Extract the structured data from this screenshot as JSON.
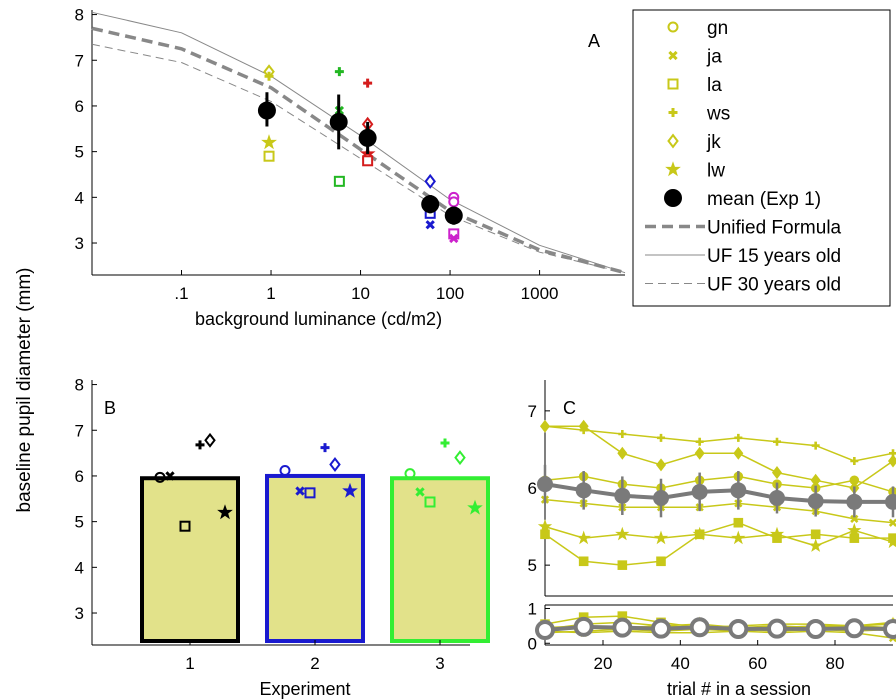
{
  "figure": {
    "shared_ylabel": "baseline pupil diameter (mm)"
  },
  "colors": {
    "olive": "#c8c819",
    "olive_fill": "#e2e28a",
    "green": "#22b722",
    "green3": "#33ee33",
    "red": "#d41c1c",
    "blue": "#1a1acf",
    "magenta": "#cc22cc",
    "gray": "#777777",
    "black": "#000000"
  },
  "chart_data": [
    {
      "panel": "A",
      "type": "scatter",
      "xscale": "log",
      "xlabel": "background luminance (cd/m2)",
      "xticks": [
        0.1,
        1,
        10,
        100,
        1000
      ],
      "xtick_labels": [
        ".1",
        "1",
        "10",
        "100",
        "1000"
      ],
      "xlim": [
        0.01,
        9000
      ],
      "ylim": [
        2.3,
        8.1
      ],
      "yticks": [
        3,
        4,
        5,
        6,
        7,
        8
      ],
      "legend_position": "outside-right",
      "legend": [
        {
          "label": "gn",
          "marker": "circle",
          "color": "#c8c819"
        },
        {
          "label": "ja",
          "marker": "x",
          "color": "#c8c819"
        },
        {
          "label": "la",
          "marker": "square",
          "color": "#c8c819"
        },
        {
          "label": "ws",
          "marker": "plus",
          "color": "#c8c819"
        },
        {
          "label": "jk",
          "marker": "diamond",
          "color": "#c8c819"
        },
        {
          "label": "lw",
          "marker": "star",
          "color": "#c8c819"
        },
        {
          "label": "mean (Exp 1)",
          "marker": "dot",
          "color": "#000000"
        },
        {
          "label": "Unified Formula",
          "marker": "dashed-thick",
          "color": "#888888"
        },
        {
          "label": "UF 15 years old",
          "marker": "line-thin",
          "color": "#888888"
        },
        {
          "label": "UF 30 years old",
          "marker": "dashed-thin",
          "color": "#888888"
        }
      ],
      "observers": [
        {
          "x": 0.95,
          "color": "#c8c819",
          "points": [
            {
              "m": "diamond",
              "y": 6.75
            },
            {
              "m": "plus",
              "y": 6.65
            },
            {
              "m": "star",
              "y": 5.2
            },
            {
              "m": "square",
              "y": 4.9
            }
          ]
        },
        {
          "x": 5.8,
          "color": "#22b722",
          "points": [
            {
              "m": "plus",
              "y": 6.75
            },
            {
              "m": "x",
              "y": 5.9
            },
            {
              "m": "square",
              "y": 4.35
            }
          ]
        },
        {
          "x": 12,
          "color": "#d41c1c",
          "points": [
            {
              "m": "plus",
              "y": 6.5
            },
            {
              "m": "diamond",
              "y": 5.6
            },
            {
              "m": "star",
              "y": 4.95
            },
            {
              "m": "circle",
              "y": 4.85
            },
            {
              "m": "square",
              "y": 4.8
            }
          ]
        },
        {
          "x": 60,
          "color": "#1a1acf",
          "points": [
            {
              "m": "diamond",
              "y": 4.35
            },
            {
              "m": "plus",
              "y": 3.9
            },
            {
              "m": "square",
              "y": 3.65
            },
            {
              "m": "x",
              "y": 3.4
            }
          ]
        },
        {
          "x": 110,
          "color": "#cc22cc",
          "points": [
            {
              "m": "circle",
              "y": 4.0
            },
            {
              "m": "circle",
              "y": 3.9
            },
            {
              "m": "square",
              "y": 3.2
            },
            {
              "m": "x",
              "y": 3.1
            }
          ]
        }
      ],
      "means": [
        {
          "x": 0.9,
          "y": 5.9,
          "lo": 5.55,
          "hi": 6.3
        },
        {
          "x": 5.7,
          "y": 5.65,
          "lo": 5.05,
          "hi": 6.25
        },
        {
          "x": 12,
          "y": 5.3,
          "lo": 4.95,
          "hi": 5.65
        },
        {
          "x": 60,
          "y": 3.85,
          "lo": 3.65,
          "hi": 4.05
        },
        {
          "x": 110,
          "y": 3.6,
          "lo": 3.4,
          "hi": 3.8
        }
      ],
      "curves": [
        {
          "name": "Unified Formula",
          "style": "dashed-thick",
          "x": [
            0.01,
            0.1,
            1,
            10,
            100,
            1000,
            9000
          ],
          "y": [
            7.7,
            7.25,
            6.4,
            5.05,
            3.7,
            2.85,
            2.35
          ]
        },
        {
          "name": "UF 15 years old",
          "style": "line-thin",
          "x": [
            0.01,
            0.1,
            1,
            10,
            100,
            1000,
            9000
          ],
          "y": [
            8.05,
            7.6,
            6.65,
            5.35,
            3.95,
            2.95,
            2.35
          ]
        },
        {
          "name": "UF 30 years old",
          "style": "dashed-thin",
          "x": [
            0.01,
            0.1,
            1,
            10,
            100,
            1000,
            9000
          ],
          "y": [
            7.35,
            6.95,
            6.1,
            4.85,
            3.6,
            2.8,
            2.35
          ]
        }
      ]
    },
    {
      "panel": "B",
      "type": "bar",
      "xlabel": "Experiment",
      "categories": [
        "1",
        "2",
        "3"
      ],
      "values": [
        5.95,
        6.0,
        5.95
      ],
      "bar_edge_colors": [
        "#000000",
        "#1a1acf",
        "#33ee33"
      ],
      "bar_fill": "#e2e28a",
      "ylim": [
        2.3,
        8.1
      ],
      "yticks": [
        3,
        4,
        5,
        6,
        7,
        8
      ],
      "observer_markers": [
        {
          "cat": 1,
          "color": "#000000",
          "points": [
            {
              "m": "circle",
              "dx": -0.3,
              "y": 5.97
            },
            {
              "m": "x",
              "dx": -0.2,
              "y": 6.0
            },
            {
              "m": "square",
              "dx": -0.05,
              "y": 4.9
            },
            {
              "m": "plus",
              "dx": 0.1,
              "y": 6.68
            },
            {
              "m": "diamond",
              "dx": 0.2,
              "y": 6.78
            },
            {
              "m": "star",
              "dx": 0.35,
              "y": 5.2
            }
          ]
        },
        {
          "cat": 2,
          "color": "#1a1acf",
          "points": [
            {
              "m": "circle",
              "dx": -0.3,
              "y": 6.12
            },
            {
              "m": "x",
              "dx": -0.15,
              "y": 5.67
            },
            {
              "m": "square",
              "dx": -0.05,
              "y": 5.63
            },
            {
              "m": "plus",
              "dx": 0.1,
              "y": 6.62
            },
            {
              "m": "diamond",
              "dx": 0.2,
              "y": 6.25
            },
            {
              "m": "star",
              "dx": 0.35,
              "y": 5.67
            }
          ]
        },
        {
          "cat": 3,
          "color": "#33ee33",
          "points": [
            {
              "m": "circle",
              "dx": -0.3,
              "y": 6.05
            },
            {
              "m": "x",
              "dx": -0.2,
              "y": 5.65
            },
            {
              "m": "square",
              "dx": -0.1,
              "y": 5.43
            },
            {
              "m": "plus",
              "dx": 0.05,
              "y": 6.72
            },
            {
              "m": "diamond",
              "dx": 0.2,
              "y": 6.4
            },
            {
              "m": "star",
              "dx": 0.35,
              "y": 5.3
            }
          ]
        }
      ]
    },
    {
      "panel": "C",
      "type": "line",
      "xlabel": "trial # in a session",
      "x": [
        5,
        15,
        25,
        35,
        45,
        55,
        65,
        75,
        85,
        95
      ],
      "xlim": [
        5,
        95
      ],
      "xticks": [
        20,
        40,
        60,
        80
      ],
      "upper": {
        "ylim": [
          4.6,
          7.4
        ],
        "yticks": [
          5,
          6,
          7
        ],
        "series": [
          {
            "marker": "diamond",
            "values": [
              6.8,
              6.8,
              6.45,
              6.3,
              6.45,
              6.45,
              6.2,
              6.1,
              6.0,
              6.35
            ]
          },
          {
            "marker": "plus",
            "values": [
              6.8,
              6.75,
              6.7,
              6.65,
              6.6,
              6.65,
              6.6,
              6.55,
              6.35,
              6.45
            ]
          },
          {
            "marker": "circle",
            "values": [
              6.1,
              6.15,
              6.05,
              6.0,
              6.1,
              6.15,
              6.05,
              6.0,
              6.1,
              5.95
            ]
          },
          {
            "marker": "x",
            "values": [
              5.85,
              5.8,
              5.75,
              5.75,
              5.75,
              5.8,
              5.75,
              5.7,
              5.6,
              5.55
            ]
          },
          {
            "marker": "star",
            "values": [
              5.5,
              5.35,
              5.4,
              5.35,
              5.4,
              5.35,
              5.4,
              5.25,
              5.45,
              5.3
            ]
          },
          {
            "marker": "square",
            "values": [
              5.4,
              5.05,
              5.0,
              5.05,
              5.4,
              5.55,
              5.35,
              5.4,
              5.35,
              5.35
            ]
          }
        ],
        "mean": [
          6.05,
          5.97,
          5.9,
          5.87,
          5.95,
          5.97,
          5.87,
          5.83,
          5.82,
          5.82
        ],
        "mean_err": [
          0.25,
          0.25,
          0.25,
          0.25,
          0.25,
          0.25,
          0.2,
          0.2,
          0.2,
          0.2
        ]
      },
      "lower": {
        "ylim": [
          -0.05,
          1.1
        ],
        "yticks": [
          0,
          1
        ],
        "series": [
          {
            "marker": "square",
            "values": [
              0.55,
              0.75,
              0.78,
              0.6,
              0.45,
              0.4,
              0.45,
              0.5,
              0.5,
              0.45
            ]
          },
          {
            "marker": "plus",
            "values": [
              0.4,
              0.55,
              0.6,
              0.5,
              0.45,
              0.5,
              0.55,
              0.55,
              0.5,
              0.6
            ]
          },
          {
            "marker": "diamond",
            "values": [
              0.35,
              0.45,
              0.4,
              0.45,
              0.5,
              0.4,
              0.35,
              0.4,
              0.35,
              0.4
            ]
          },
          {
            "marker": "circle",
            "values": [
              0.3,
              0.35,
              0.4,
              0.35,
              0.4,
              0.35,
              0.4,
              0.4,
              0.45,
              0.35
            ]
          },
          {
            "marker": "x",
            "values": [
              0.35,
              0.3,
              0.35,
              0.3,
              0.3,
              0.35,
              0.3,
              0.35,
              0.3,
              0.15
            ]
          },
          {
            "marker": "star",
            "values": [
              0.45,
              0.5,
              0.45,
              0.5,
              0.55,
              0.45,
              0.5,
              0.45,
              0.5,
              0.55
            ]
          }
        ],
        "mean": [
          0.38,
          0.47,
          0.45,
          0.42,
          0.46,
          0.41,
          0.42,
          0.41,
          0.43,
          0.41
        ]
      }
    }
  ]
}
